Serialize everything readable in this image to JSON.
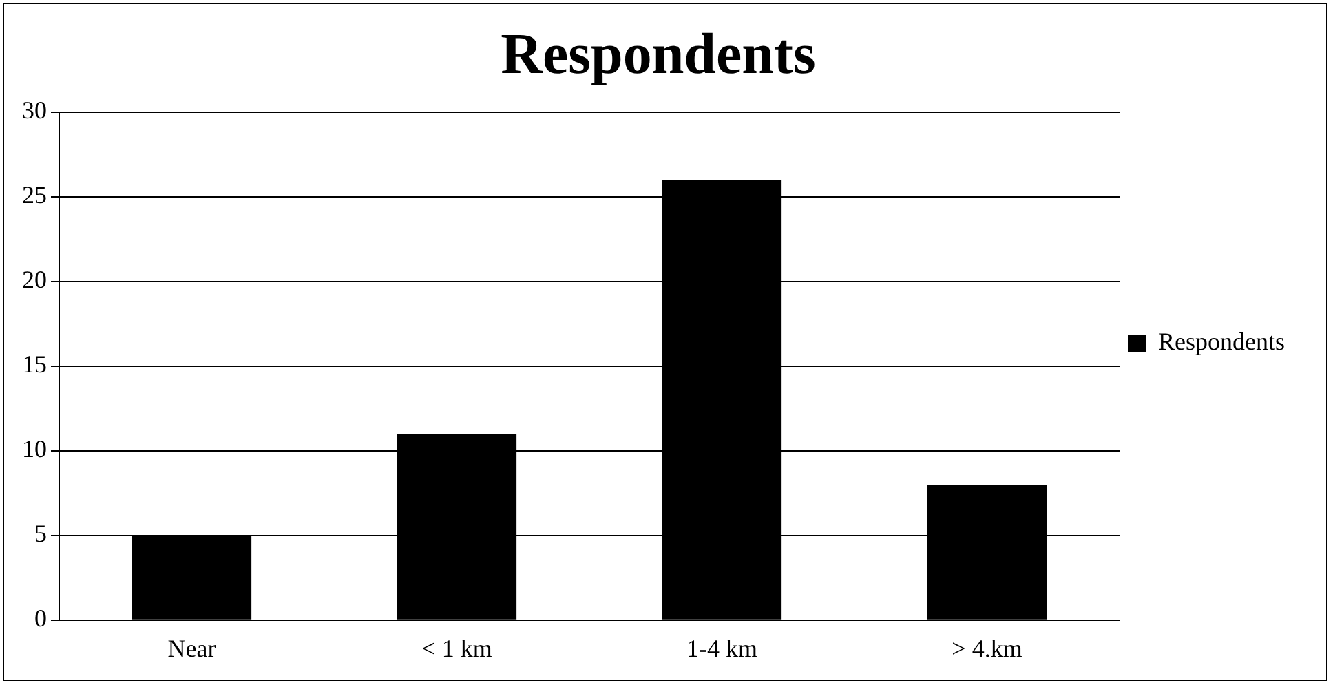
{
  "chart_data": {
    "type": "bar",
    "title": "Respondents",
    "categories": [
      "Near",
      "< 1 km",
      "1-4 km",
      "> 4.km"
    ],
    "series": [
      {
        "name": "Respondents",
        "color": "#000000",
        "values": [
          5,
          11,
          26,
          8
        ]
      }
    ],
    "ylim": [
      0,
      30
    ],
    "yticks": [
      0,
      5,
      10,
      15,
      20,
      25,
      30
    ],
    "grid": "y",
    "legend": "right"
  }
}
